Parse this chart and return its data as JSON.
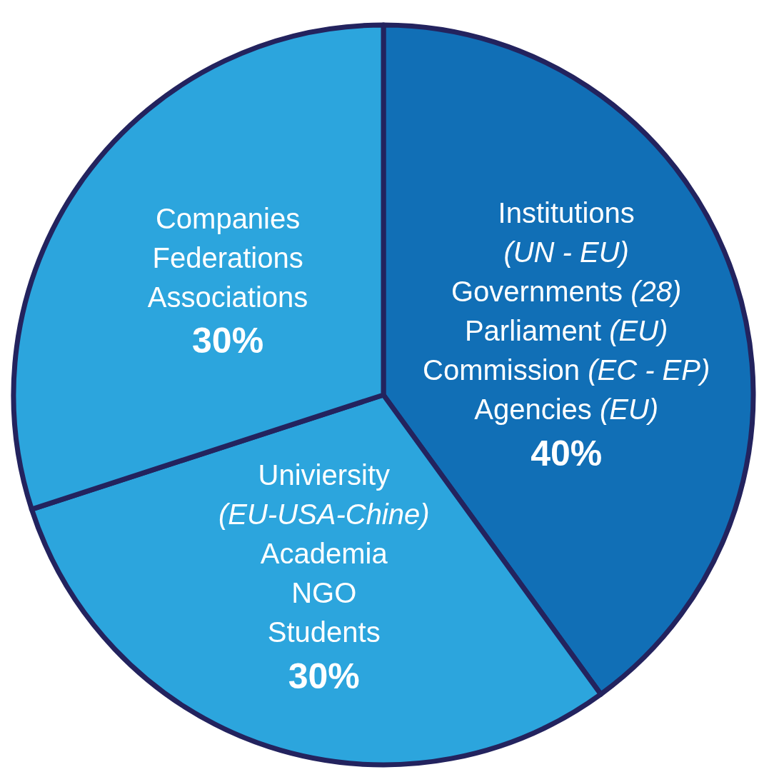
{
  "chart_data": {
    "type": "pie",
    "categories": [
      "Institutions\n(UN - EU)\nGovernments (28)\nParliament (EU)\nCommission (EC - EP)\nAgencies (EU)",
      "Univiersity\n(EU-USA-Chine)\nAcademia\nNGO\nStudents",
      "Companies\nFederations\nAssociations"
    ],
    "values": [
      40,
      30,
      30
    ],
    "colors": [
      "#116fb6",
      "#2ca5dd",
      "#2ca5dd"
    ],
    "value_labels": [
      "40%",
      "30%",
      "30%"
    ]
  }
}
